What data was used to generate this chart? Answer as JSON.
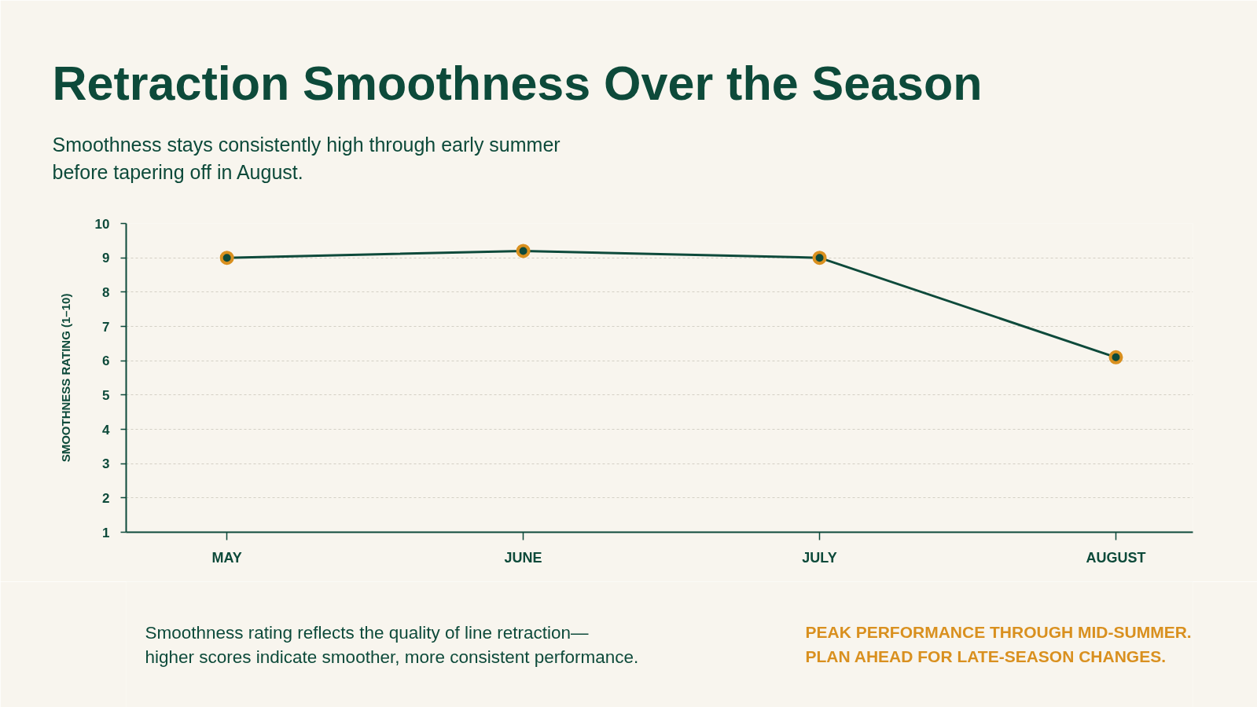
{
  "chart_data": {
    "type": "line",
    "title": "Retraction Smoothness Over the Season",
    "subtitle": "Smoothness stays consistently high through early summer\nbefore tapering off in August.",
    "ylabel": "SMOOTHNESS RATING (1–10)",
    "categories": [
      "MAY",
      "JUNE",
      "JULY",
      "AUGUST"
    ],
    "series": [
      {
        "color": "#0e4a3b",
        "values": [
          9.0,
          9.2,
          9.0,
          6.1
        ]
      }
    ],
    "ylim": [
      1,
      10
    ],
    "yticks": [
      1,
      2,
      3,
      4,
      5,
      6,
      7,
      8,
      9,
      10
    ],
    "grid": "y",
    "marker": "circle",
    "line_style": "solid",
    "annotations": [
      "Smoothness rating reflects the quality of line retraction—\nhigher scores indicate smoother, more consistent performance.",
      "PEAK PERFORMANCE THROUGH MID-SUMMER.\nPLAN AHEAD FOR LATE-SEASON CHANGES."
    ]
  }
}
